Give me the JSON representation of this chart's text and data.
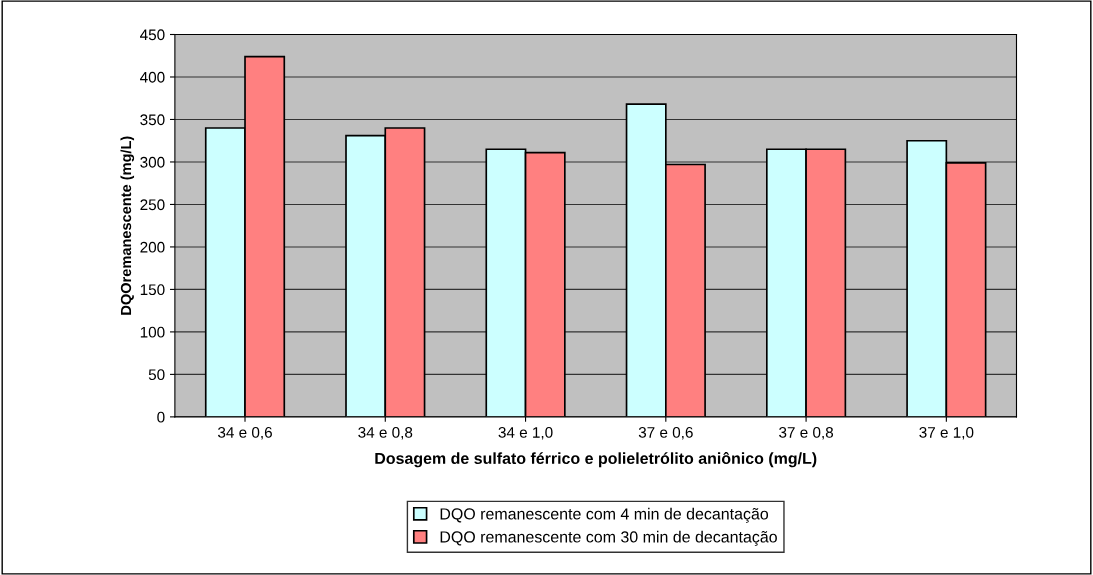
{
  "chart_data": {
    "type": "bar",
    "xlabel": "Dosagem de sulfato férrico e polieletrólito aniônico (mg/L)",
    "ylabel": "DQOremanescente (mg/L)",
    "categories": [
      "34 e 0,6",
      "34 e 0,8",
      "34 e 1,0",
      "37 e 0,6",
      "37 e 0,8",
      "37 e 1,0"
    ],
    "series": [
      {
        "name": "DQO remanescente com 4 min de decantação",
        "color": "#ccffff",
        "values": [
          340,
          331,
          315,
          368,
          315,
          325
        ]
      },
      {
        "name": "DQO remanescente com 30 min de decantação",
        "color": "#ff8080",
        "values": [
          424,
          340,
          311,
          297,
          315,
          299
        ]
      }
    ],
    "ylim": [
      0,
      450
    ],
    "yticks": [
      0,
      50,
      100,
      150,
      200,
      250,
      300,
      350,
      400,
      450
    ],
    "grid": "y",
    "legend": "bottom"
  }
}
